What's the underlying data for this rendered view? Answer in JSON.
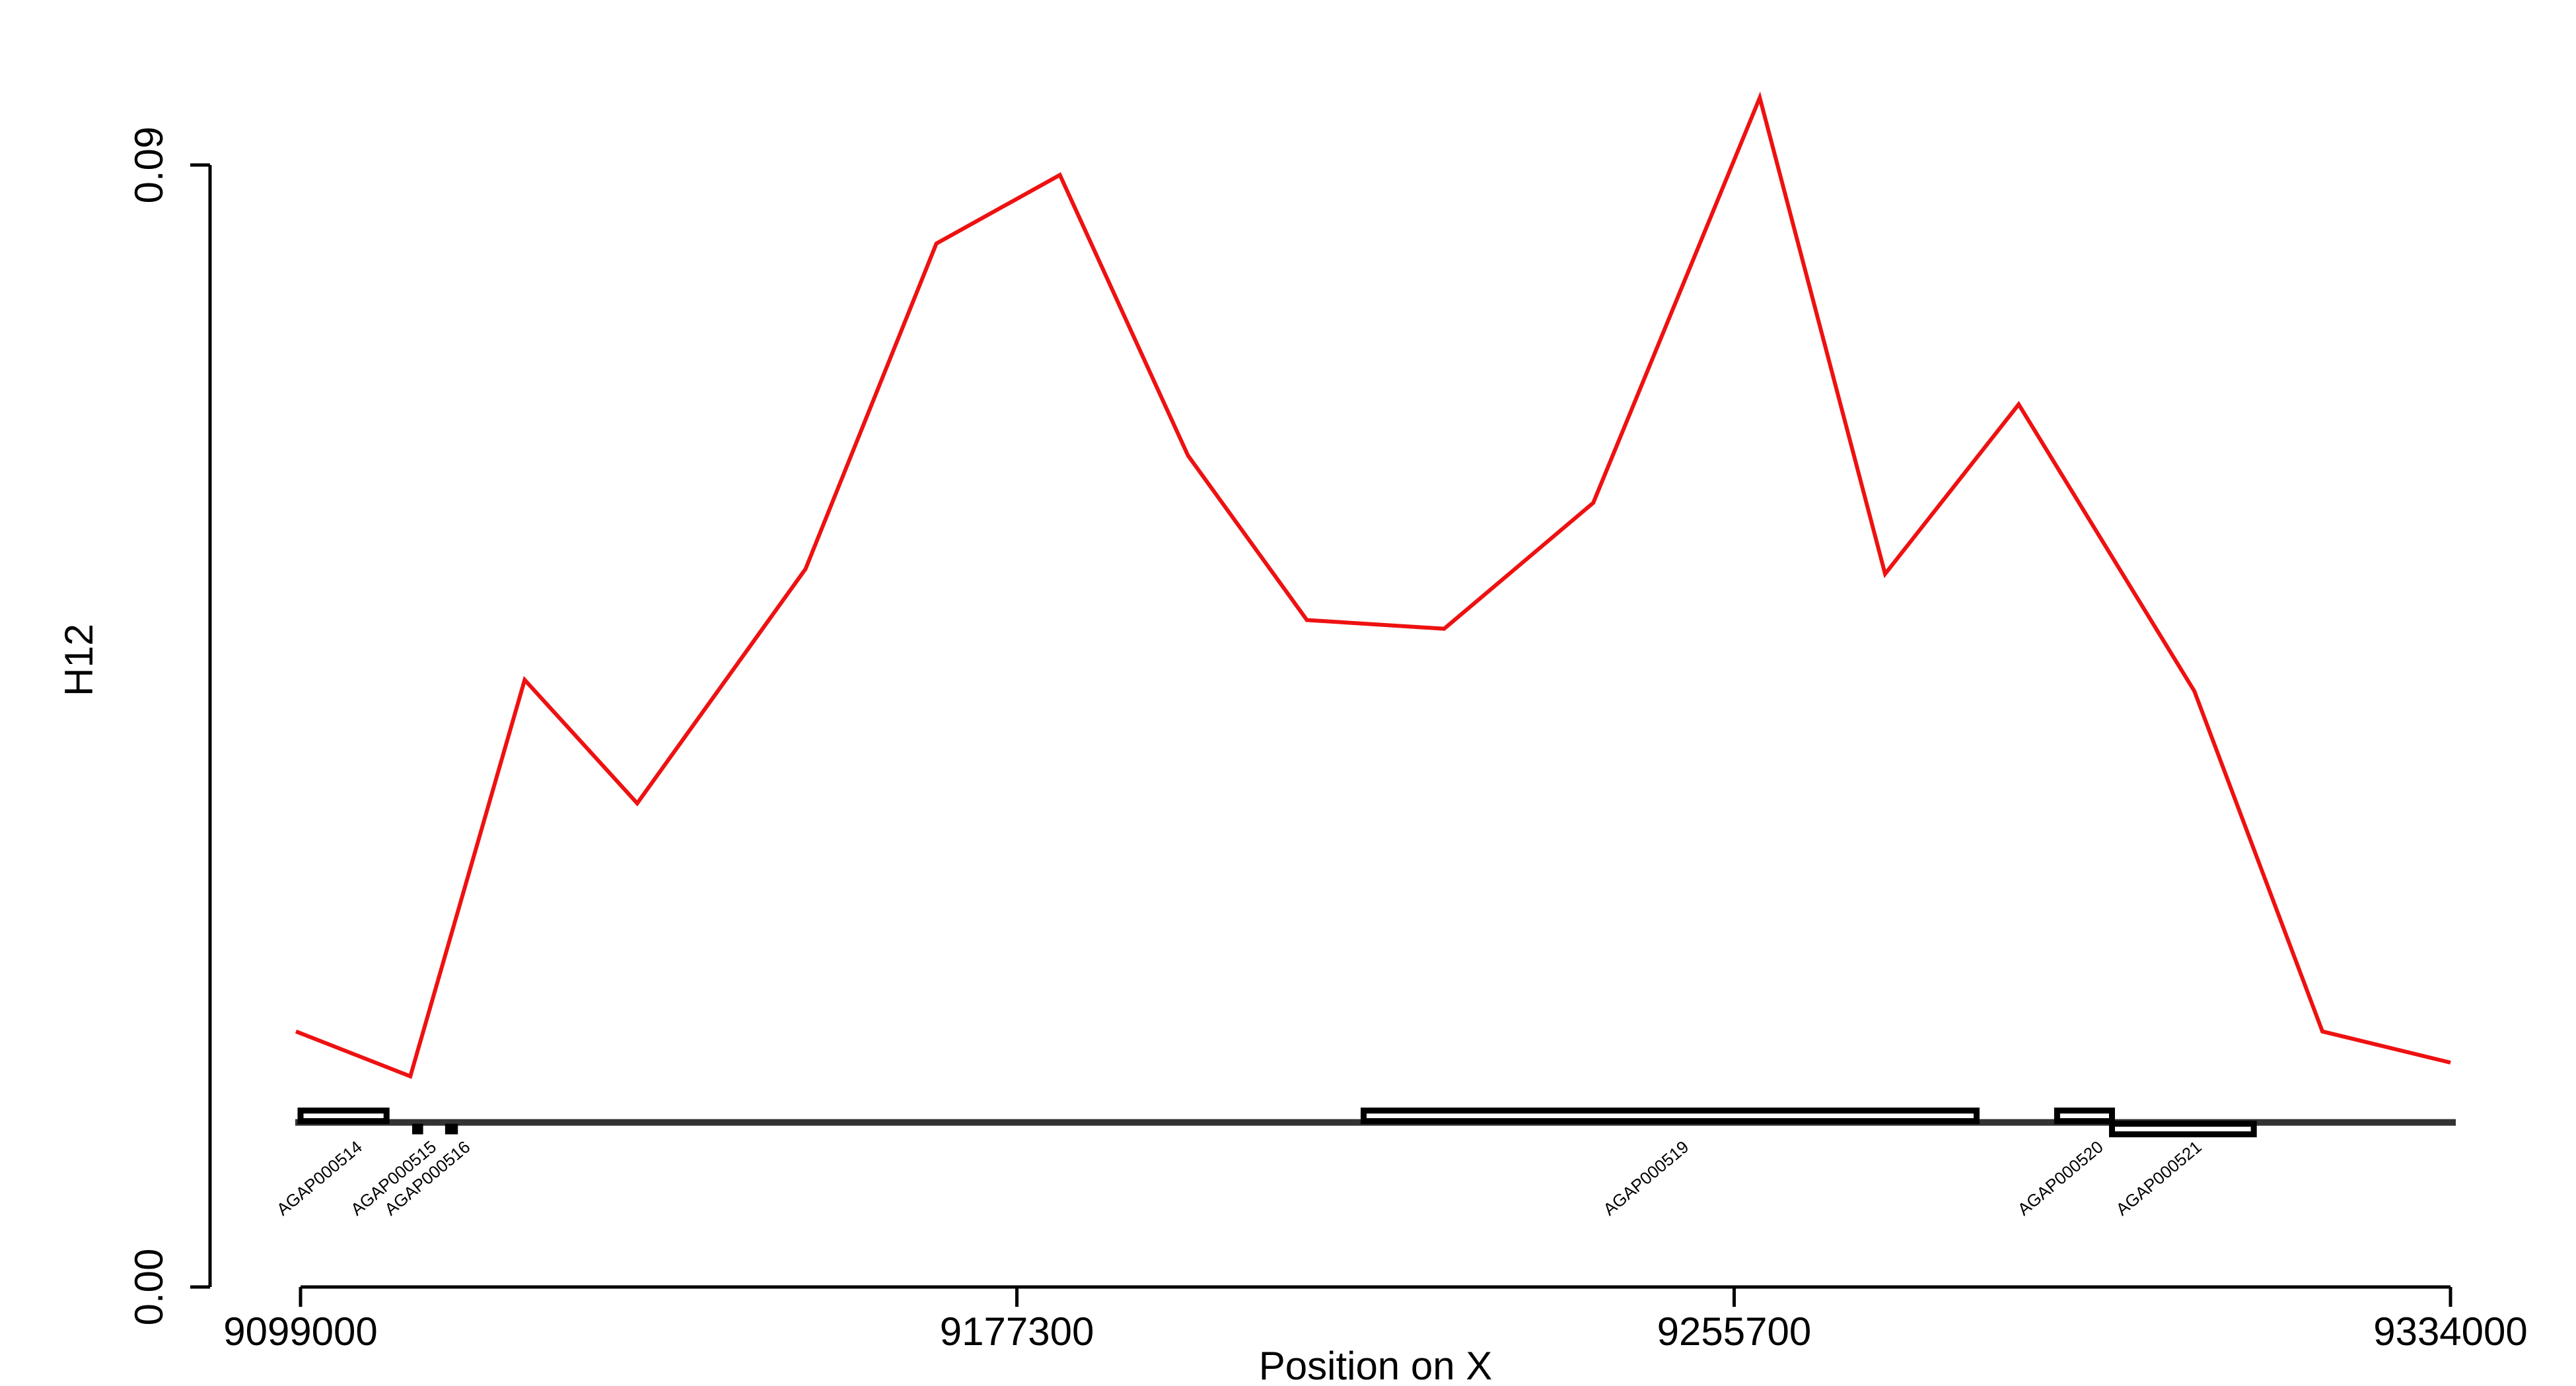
{
  "chart_data": {
    "type": "line",
    "ylabel": "H12",
    "xlabel": "Position on X",
    "xlim": [
      9099000,
      9334000
    ],
    "ylim": [
      0.0,
      0.09
    ],
    "x_ticks": [
      9099000,
      9177300,
      9255700,
      9334000
    ],
    "x_tick_labels": [
      "9099000",
      "9177300",
      "9255700",
      "9334000"
    ],
    "y_ticks": [
      0.0,
      0.09
    ],
    "y_tick_labels": [
      "0.00",
      "0.09"
    ],
    "line_color": "#ee1111",
    "series": [
      {
        "x": [
          9098500,
          9111000,
          9123500,
          9135800,
          9154200,
          9168500,
          9182000,
          9196000,
          9209000,
          9224000,
          9240300,
          9258500,
          9272200,
          9286800,
          9306000,
          9320000,
          9334000
        ],
        "y": [
          0.0205,
          0.0169,
          0.0487,
          0.0388,
          0.0576,
          0.0837,
          0.0892,
          0.0667,
          0.0535,
          0.0528,
          0.0629,
          0.0954,
          0.0572,
          0.0708,
          0.0478,
          0.0205,
          0.018
        ]
      }
    ],
    "baseline_y": 0.0132,
    "genes": [
      {
        "label": "AGAP000514",
        "start": 9099000,
        "end": 9108400,
        "strand": "+"
      },
      {
        "label": "AGAP000515",
        "start": 9111200,
        "end": 9112400,
        "strand": "-"
      },
      {
        "label": "AGAP000516",
        "start": 9114800,
        "end": 9116200,
        "strand": "-"
      },
      {
        "label": "AGAP000519",
        "start": 9215200,
        "end": 9282200,
        "strand": "+"
      },
      {
        "label": "AGAP000520",
        "start": 9291000,
        "end": 9297000,
        "strand": "+"
      },
      {
        "label": "AGAP000521",
        "start": 9297000,
        "end": 9312500,
        "strand": "-"
      }
    ]
  }
}
